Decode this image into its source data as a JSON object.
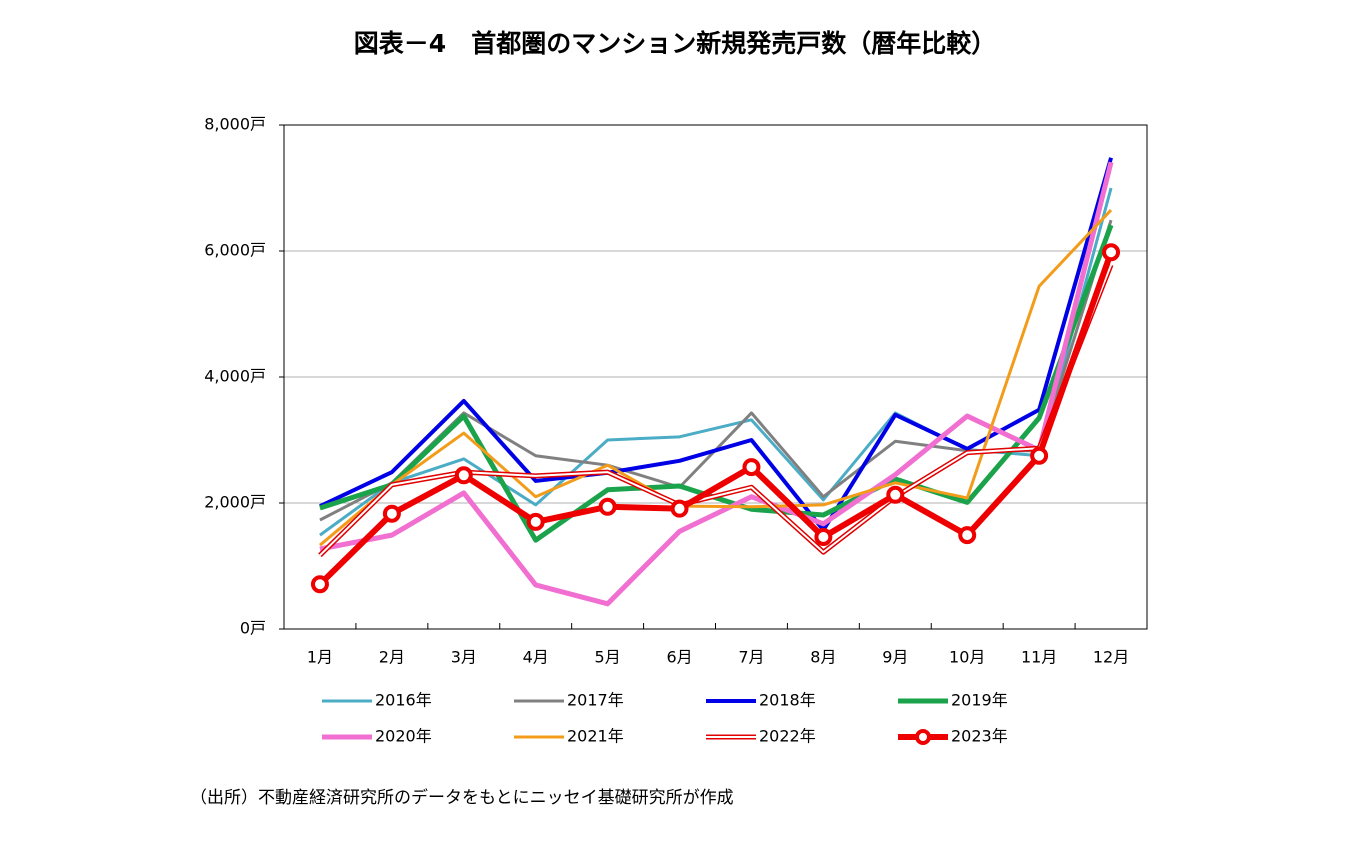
{
  "chart_data": {
    "type": "line",
    "title": "図表－4　首都圏のマンション新規発売戸数（暦年比較）",
    "note": "（出所）不動産経済研究所のデータをもとにニッセイ基礎研究所が作成",
    "categories": [
      "1月",
      "2月",
      "3月",
      "4月",
      "5月",
      "6月",
      "7月",
      "8月",
      "9月",
      "10月",
      "11月",
      "12月"
    ],
    "ylim": [
      0,
      8000
    ],
    "yticks": [
      {
        "value": 0,
        "label": "0戸"
      },
      {
        "value": 2000,
        "label": "2,000戸"
      },
      {
        "value": 4000,
        "label": "4,000戸"
      },
      {
        "value": 6000,
        "label": "6,000戸"
      },
      {
        "value": 8000,
        "label": "8,000戸"
      }
    ],
    "grid": true,
    "series": [
      {
        "name": "2016年",
        "color": "#4bacc6",
        "values": [
          1490,
          2320,
          2700,
          1970,
          3000,
          3050,
          3320,
          2050,
          3430,
          2850,
          2750,
          7000
        ]
      },
      {
        "name": "2017年",
        "color": "#808080",
        "values": [
          1730,
          2320,
          3430,
          2750,
          2600,
          2250,
          3430,
          2100,
          2980,
          2830,
          2830,
          6490
        ]
      },
      {
        "name": "2018年",
        "color": "#0000e6",
        "values": [
          1950,
          2490,
          3620,
          2350,
          2480,
          2670,
          3000,
          1570,
          3400,
          2860,
          3480,
          7480
        ]
      },
      {
        "name": "2019年",
        "color": "#1aa34a",
        "values": [
          1920,
          2290,
          3380,
          1410,
          2210,
          2270,
          1900,
          1810,
          2380,
          2010,
          3350,
          6410
        ]
      },
      {
        "name": "2020年",
        "color": "#f06fd0",
        "values": [
          1270,
          1490,
          2160,
          700,
          400,
          1550,
          2100,
          1670,
          2450,
          3380,
          2840,
          7410
        ]
      },
      {
        "name": "2021年",
        "color": "#f39c1b",
        "values": [
          1330,
          2290,
          3110,
          2100,
          2600,
          1950,
          1940,
          1970,
          2320,
          2080,
          5440,
          6650
        ]
      },
      {
        "name": "2022年",
        "color": "#e00000",
        "line_style": "double",
        "values": [
          1170,
          2290,
          2490,
          2430,
          2490,
          1970,
          2250,
          1220,
          2100,
          2800,
          2870,
          5780
        ]
      },
      {
        "name": "2023年",
        "color": "#ee0000",
        "marker": "circle",
        "values": [
          710,
          1830,
          2440,
          1700,
          1940,
          1910,
          2570,
          1460,
          2130,
          1490,
          2750,
          5980
        ]
      }
    ]
  }
}
